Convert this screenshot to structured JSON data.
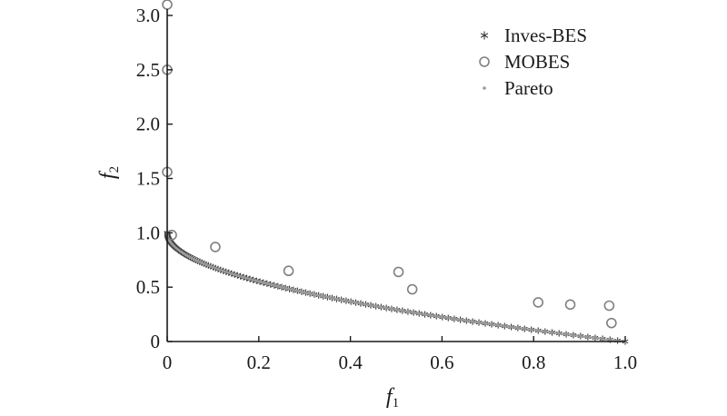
{
  "chart_data": {
    "type": "scatter",
    "xlabel": {
      "main": "f",
      "sub": "1"
    },
    "ylabel": {
      "main": "f",
      "sub": "2"
    },
    "xlim": [
      0,
      1.0
    ],
    "ylim": [
      0,
      3.0
    ],
    "xticks": [
      {
        "value": 0,
        "label": "0"
      },
      {
        "value": 0.2,
        "label": "0.2"
      },
      {
        "value": 0.4,
        "label": "0.4"
      },
      {
        "value": 0.6,
        "label": "0.6"
      },
      {
        "value": 0.8,
        "label": "0.8"
      },
      {
        "value": 1.0,
        "label": "1.0"
      }
    ],
    "yticks": [
      {
        "value": 0,
        "label": "0"
      },
      {
        "value": 0.5,
        "label": "0.5"
      },
      {
        "value": 1.0,
        "label": "1.0"
      },
      {
        "value": 1.5,
        "label": "1.5"
      },
      {
        "value": 2.0,
        "label": "2.0"
      },
      {
        "value": 2.5,
        "label": "2.5"
      },
      {
        "value": 3.0,
        "label": "3.0"
      }
    ],
    "legend_position": "top-right",
    "series": [
      {
        "name": "Inves-BES",
        "marker": "asterisk",
        "color": "#3a3a3a",
        "function": "1 - sqrt(x)",
        "x_range": [
          0,
          1
        ],
        "n_points": 120
      },
      {
        "name": "MOBES",
        "marker": "open-circle",
        "color": "#808080",
        "points": [
          [
            0.0,
            3.1
          ],
          [
            0.0,
            2.5
          ],
          [
            0.0,
            1.56
          ],
          [
            0.01,
            0.98
          ],
          [
            0.105,
            0.87
          ],
          [
            0.265,
            0.65
          ],
          [
            0.505,
            0.64
          ],
          [
            0.535,
            0.48
          ],
          [
            0.81,
            0.36
          ],
          [
            0.88,
            0.34
          ],
          [
            0.965,
            0.33
          ],
          [
            0.97,
            0.17
          ]
        ]
      },
      {
        "name": "Pareto",
        "marker": "dot",
        "color": "#9a9a9a",
        "function": "1 - sqrt(x)",
        "x_range": [
          0,
          1
        ],
        "n_points": 400
      }
    ]
  }
}
